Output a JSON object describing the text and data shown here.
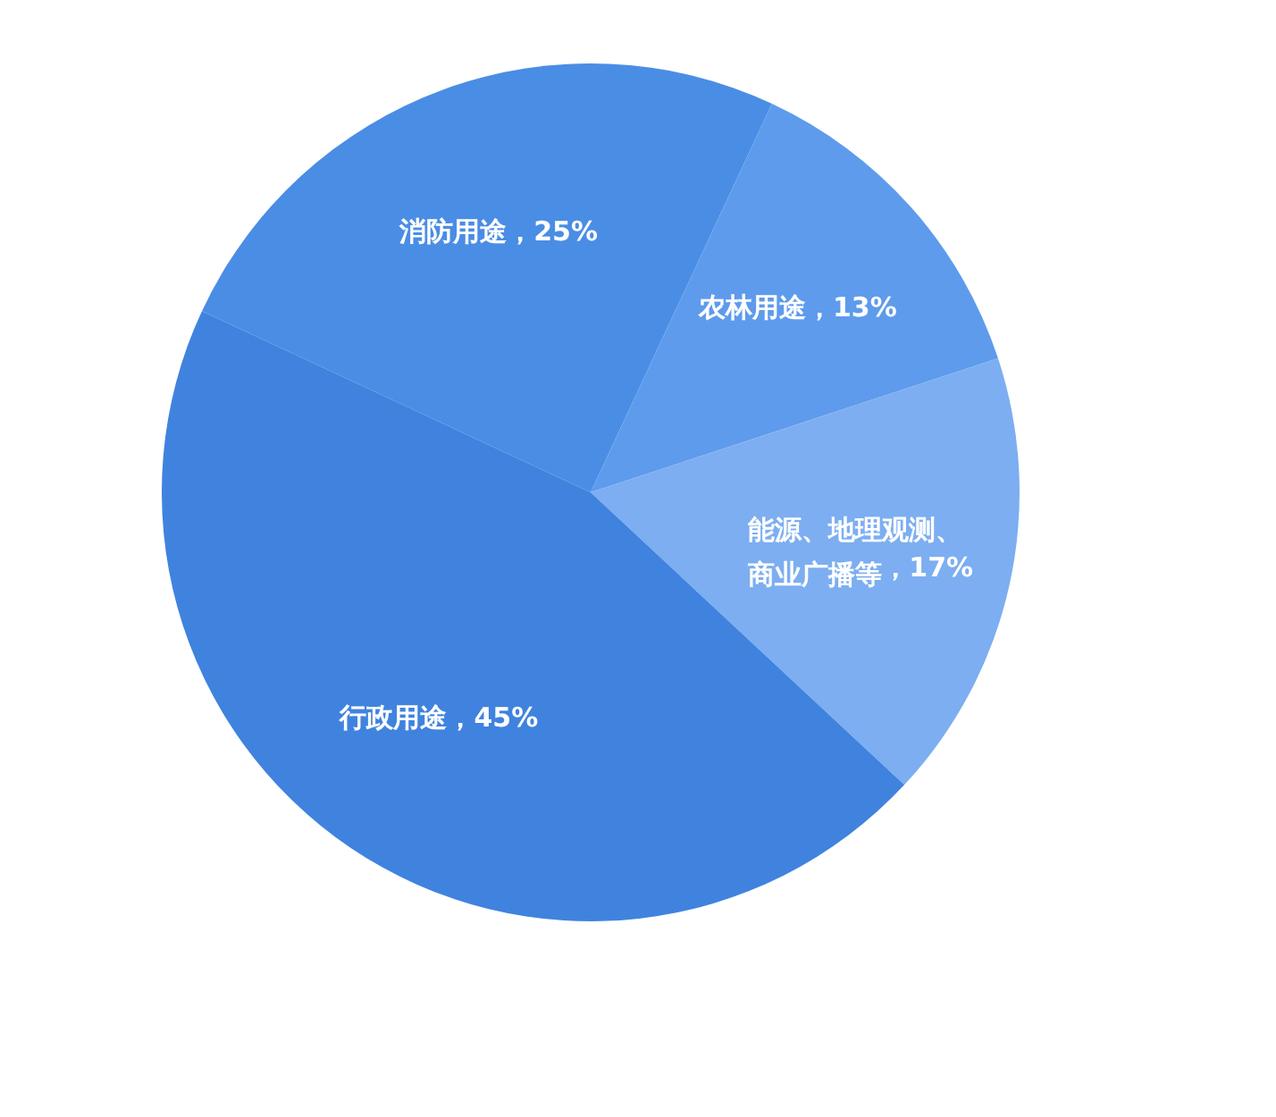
{
  "chart_data": {
    "type": "pie",
    "categories": [
      "消防用途",
      "农林用途",
      "能源、地理观测、商业广播等",
      "行政用途"
    ],
    "values": [
      25,
      13,
      17,
      45
    ],
    "colors": [
      "#4a8de5",
      "#5e9bec",
      "#7caef1",
      "#3f83df"
    ],
    "value_labels": [
      "，25%",
      "，13%",
      "，17%",
      "，45%"
    ]
  }
}
